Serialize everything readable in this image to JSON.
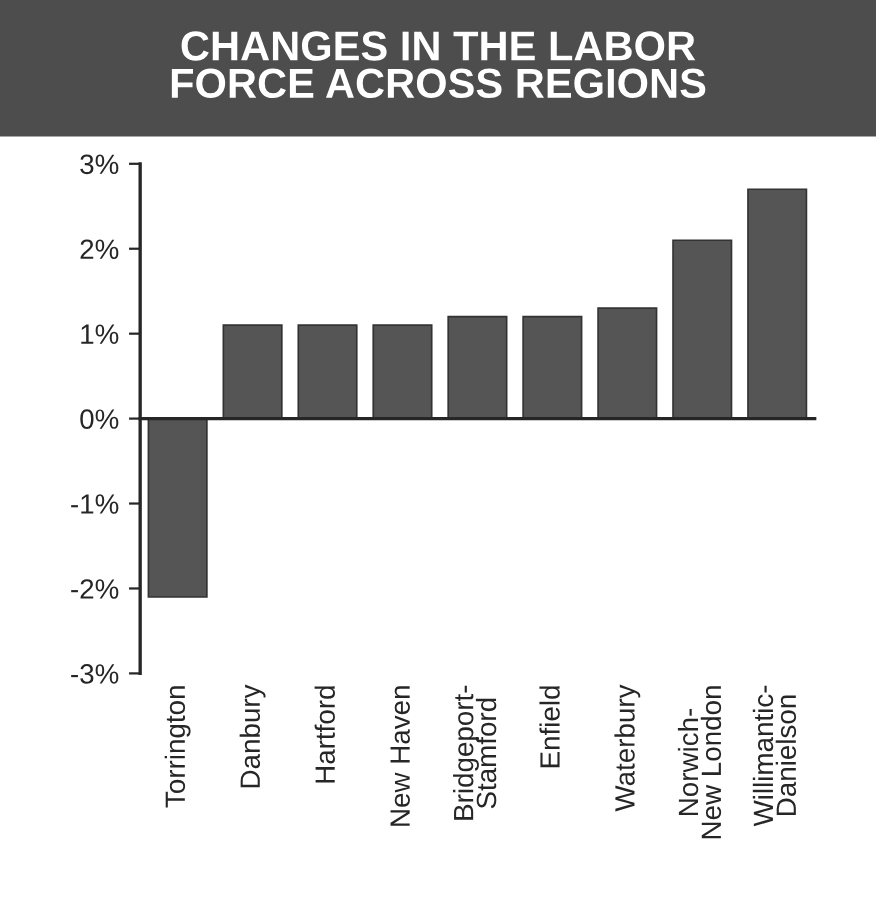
{
  "chart_data": {
    "type": "bar",
    "title": "CHANGES IN THE LABOR\nFORCE ACROSS REGIONS",
    "categories": [
      "Torrington",
      "Danbury",
      "Hartford",
      "New Haven",
      "Bridgeport-\nStamford",
      "Enfield",
      "Waterbury",
      "Norwich-\nNew London",
      "Willimantic-\nDanielson"
    ],
    "values": [
      -2.1,
      1.1,
      1.1,
      1.1,
      1.2,
      1.2,
      1.3,
      2.1,
      2.7
    ],
    "color": "#555555",
    "ylim": [
      -3,
      3
    ],
    "yticks": [
      {
        "value": -3,
        "label": "-3%"
      },
      {
        "value": -2,
        "label": "-2%"
      },
      {
        "value": -1,
        "label": "-1%"
      },
      {
        "value": 0,
        "label": "0%"
      },
      {
        "value": 1,
        "label": "1%"
      },
      {
        "value": 2,
        "label": "2%"
      },
      {
        "value": 3,
        "label": "3%"
      }
    ],
    "legend": false
  }
}
